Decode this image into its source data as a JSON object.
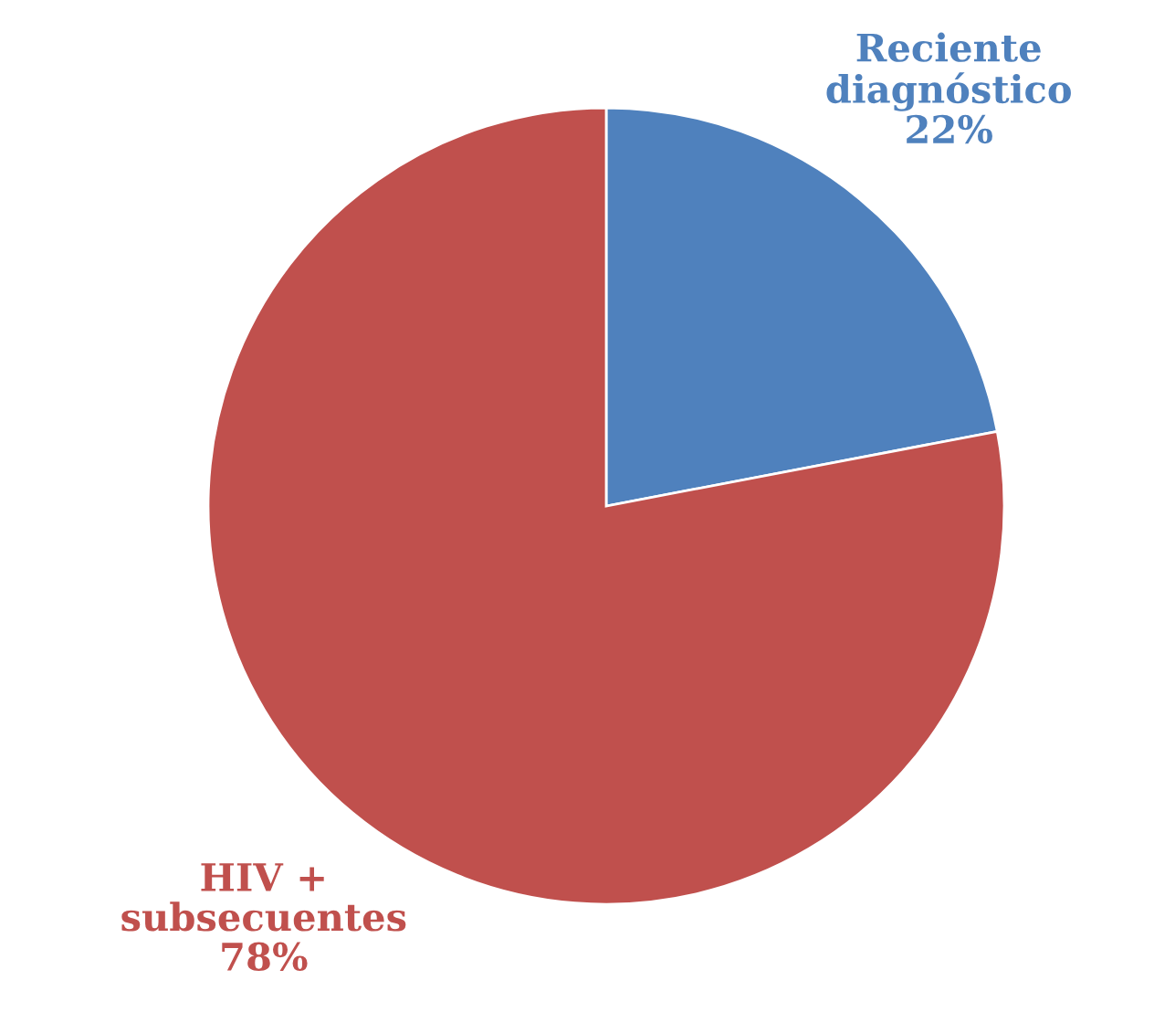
{
  "chart_data": {
    "type": "pie",
    "categories": [
      "Reciente diagnóstico",
      "HIV + subsecuentes"
    ],
    "values": [
      22,
      78
    ],
    "value_labels": [
      "22%",
      "78%"
    ],
    "colors": [
      "#4f81bd",
      "#c0504d"
    ],
    "legend": false
  }
}
